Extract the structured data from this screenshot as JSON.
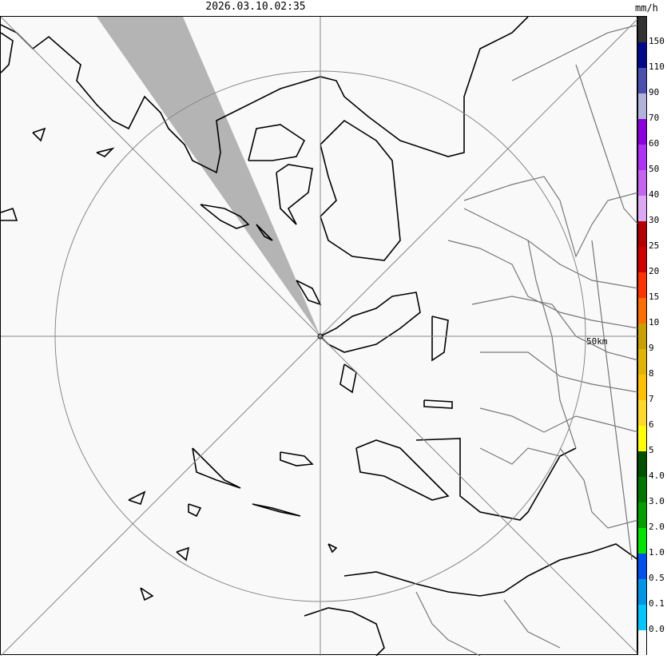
{
  "header": {
    "timestamp": "2026.03.10.02:35",
    "unit": "mm/h"
  },
  "map": {
    "range_ring_label": "50km",
    "beam_blockage_color": "#b4b4b4"
  },
  "legend": {
    "segments": [
      {
        "color": "#333333",
        "label": ""
      },
      {
        "color": "#000a8c",
        "label": "150"
      },
      {
        "color": "#4a50b0",
        "label": "110"
      },
      {
        "color": "#b0b4dc",
        "label": "90"
      },
      {
        "color": "#8c00e0",
        "label": "70"
      },
      {
        "color": "#b030f8",
        "label": "60"
      },
      {
        "color": "#c464f0",
        "label": "50"
      },
      {
        "color": "#dca8f4",
        "label": "40"
      },
      {
        "color": "#b40000",
        "label": "30"
      },
      {
        "color": "#d20000",
        "label": "25"
      },
      {
        "color": "#ff3200",
        "label": "20"
      },
      {
        "color": "#ff6e00",
        "label": "15"
      },
      {
        "color": "#c8a000",
        "label": "10"
      },
      {
        "color": "#e0b400",
        "label": "9"
      },
      {
        "color": "#ffc000",
        "label": "8"
      },
      {
        "color": "#ffd828",
        "label": "7"
      },
      {
        "color": "#ffff00",
        "label": "6"
      },
      {
        "color": "#005000",
        "label": "5"
      },
      {
        "color": "#007800",
        "label": "4.0"
      },
      {
        "color": "#00a000",
        "label": "3.0"
      },
      {
        "color": "#00e600",
        "label": "2.0"
      },
      {
        "color": "#0050f0",
        "label": "1.0"
      },
      {
        "color": "#0096e8",
        "label": "0.5"
      },
      {
        "color": "#00c8ff",
        "label": "0.1"
      },
      {
        "color": "#f8f8f8",
        "label": "0.0"
      }
    ]
  }
}
